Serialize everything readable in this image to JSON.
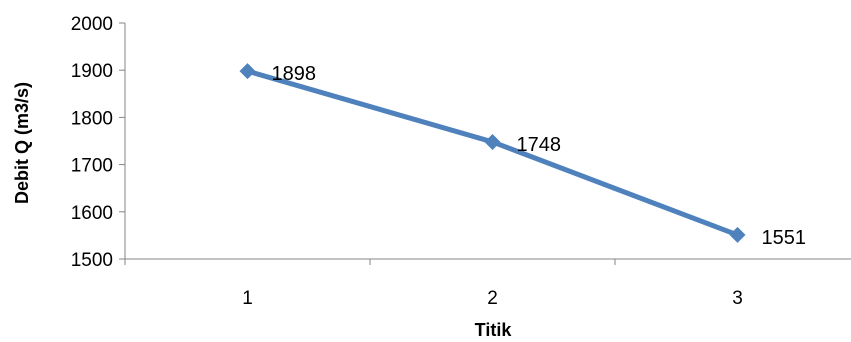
{
  "chart_data": {
    "type": "line",
    "categories": [
      "1",
      "2",
      "3"
    ],
    "series": [
      {
        "values": [
          1898,
          1748,
          1551
        ],
        "color": "#4f81bd",
        "marker": "diamond",
        "data_labels": [
          "1898",
          "1748",
          "1551"
        ]
      }
    ],
    "xlabel": "Titik",
    "ylabel": "Debit Q (m3/s)",
    "ylim": [
      1500,
      2000
    ],
    "yticks": [
      1500,
      1600,
      1700,
      1800,
      1900,
      2000
    ],
    "ytick_labels": [
      "1500",
      "1600",
      "1700",
      "1800",
      "1900",
      "2000"
    ],
    "grid": false,
    "legend": "none"
  }
}
